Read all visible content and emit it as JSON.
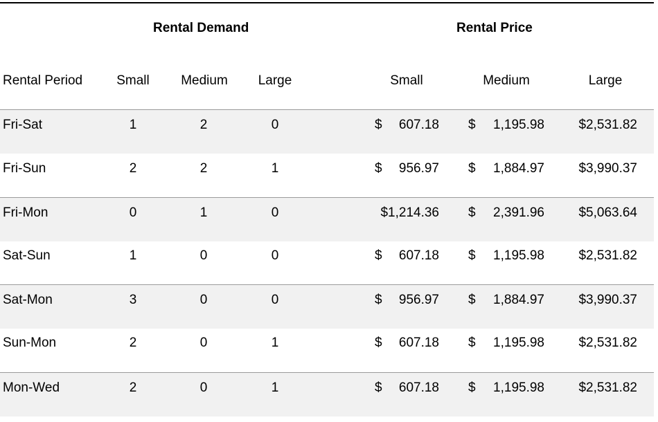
{
  "table": {
    "group_headers": {
      "demand": "Rental Demand",
      "price": "Rental Price"
    },
    "column_headers": {
      "period": "Rental Period",
      "demand_small": "Small",
      "demand_medium": "Medium",
      "demand_large": "Large",
      "price_small": "Small",
      "price_medium": "Medium",
      "price_large": "Large"
    },
    "currency_symbol": "$",
    "rows": [
      {
        "period": "Fri-Sat",
        "demand_small": "1",
        "demand_medium": "2",
        "demand_large": "0",
        "price_small": "607.18",
        "price_medium": "1,195.98",
        "price_large": "$2,531.82"
      },
      {
        "period": "Fri-Sun",
        "demand_small": "2",
        "demand_medium": "2",
        "demand_large": "1",
        "price_small": "956.97",
        "price_medium": "1,884.97",
        "price_large": "$3,990.37"
      },
      {
        "period": "Fri-Mon",
        "demand_small": "0",
        "demand_medium": "1",
        "demand_large": "0",
        "price_small": "$1,214.36",
        "price_medium": "2,391.96",
        "price_large": "$5,063.64"
      },
      {
        "period": "Sat-Sun",
        "demand_small": "1",
        "demand_medium": "0",
        "demand_large": "0",
        "price_small": "607.18",
        "price_medium": "1,195.98",
        "price_large": "$2,531.82"
      },
      {
        "period": "Sat-Mon",
        "demand_small": "3",
        "demand_medium": "0",
        "demand_large": "0",
        "price_small": "956.97",
        "price_medium": "1,884.97",
        "price_large": "$3,990.37"
      },
      {
        "period": "Sun-Mon",
        "demand_small": "2",
        "demand_medium": "0",
        "demand_large": "1",
        "price_small": "607.18",
        "price_medium": "1,195.98",
        "price_large": "$2,531.82"
      },
      {
        "period": "Mon-Wed",
        "demand_small": "2",
        "demand_medium": "0",
        "demand_large": "1",
        "price_small": "607.18",
        "price_medium": "1,195.98",
        "price_large": "$2,531.82"
      }
    ]
  }
}
